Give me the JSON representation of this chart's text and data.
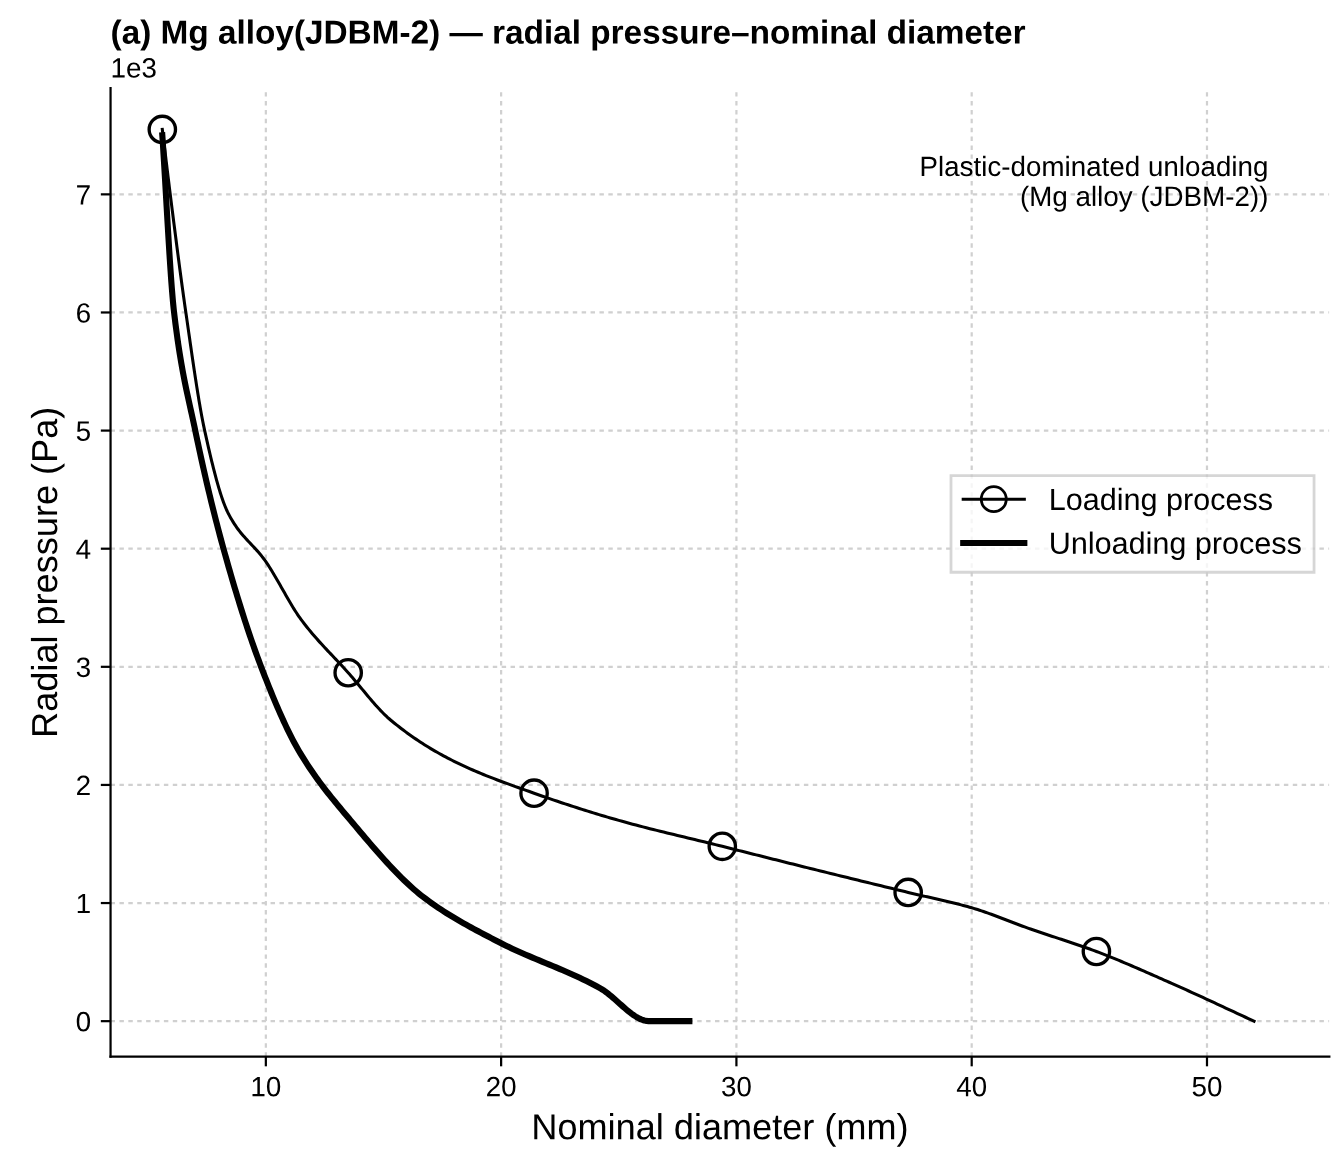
{
  "chart_data": {
    "type": "line",
    "title": "(a) Mg alloy(JDBM-2) — radial pressure–nominal diameter",
    "xlabel": "Nominal diameter (mm)",
    "ylabel": "Radial pressure (Pa)",
    "annotations": [
      "1e3",
      "Plastic-dominated unloading\n(Mg alloy (JDBM-2))"
    ],
    "series": [
      {
        "name": "Loading process",
        "color": "#000000",
        "marker": "none",
        "x": [
          5.6,
          6.0,
          6.6,
          7.4,
          8.4,
          10.0,
          11.5,
          13.5,
          15.3,
          18,
          21.4,
          25,
          29.4,
          33,
          37.3,
          40,
          42.5,
          45.3,
          48.5,
          52
        ],
        "values": [
          7.55,
          6.9,
          6.0,
          5.0,
          4.3,
          3.89,
          3.4,
          2.95,
          2.55,
          2.2,
          1.93,
          1.7,
          1.48,
          1.3,
          1.09,
          0.96,
          0.78,
          0.59,
          0.32,
          0
        ]
      },
      {
        "type": "scatter",
        "color": "#000000",
        "marker": "circle",
        "x": [
          5.6,
          13.5,
          21.4,
          29.4,
          37.3,
          45.3
        ],
        "values": [
          7.55,
          2.95,
          1.93,
          1.48,
          1.09,
          0.59
        ]
      },
      {
        "name": "Unloading process",
        "color": "#000000",
        "marker": "none",
        "x": [
          5.6,
          6.1,
          7.0,
          8.2,
          9.8,
          11.4,
          13.6,
          16.7,
          19.9,
          24.2,
          26.3,
          28
        ],
        "values": [
          7.5,
          6.0,
          5.0,
          4.0,
          3.0,
          2.29,
          1.7,
          1.05,
          0.67,
          0.28,
          0,
          0
        ]
      }
    ],
    "xlim": [
      3.4,
      55.2
    ],
    "xticks": [
      10,
      20,
      30,
      40,
      50
    ],
    "ylim": [
      -0.3,
      7.9
    ],
    "yticks": [
      0,
      1,
      2,
      3,
      4,
      5,
      6,
      7
    ],
    "grid": true,
    "legend": "right"
  }
}
